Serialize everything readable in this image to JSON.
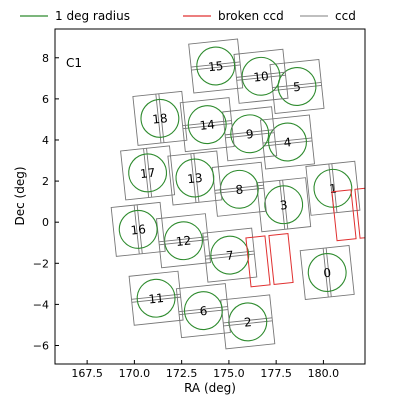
{
  "chart_data": {
    "type": "scatter",
    "title": "",
    "annotation": "C1",
    "xlabel": "RA (deg)",
    "ylabel": "Dec (deg)",
    "xlim": [
      165.8,
      182.2
    ],
    "ylim": [
      -6.9,
      9.4
    ],
    "x_ticks": [
      167.5,
      170.0,
      172.5,
      175.0,
      177.5,
      180.0
    ],
    "x_tick_labels": [
      "167.5",
      "170.0",
      "172.5",
      "175.0",
      "177.5",
      "180.0"
    ],
    "y_ticks": [
      -6,
      -4,
      -2,
      0,
      2,
      4,
      6,
      8
    ],
    "y_tick_labels": [
      "−6",
      "−4",
      "−2",
      "0",
      "2",
      "4",
      "6",
      "8"
    ],
    "grid": false,
    "legend": {
      "placement": "top, outside plot",
      "entries": [
        {
          "label": "1 deg radius",
          "color": "#2e8b2e"
        },
        {
          "label": "broken ccd",
          "color": "#e03030"
        },
        {
          "label": "ccd",
          "color": "#999999"
        }
      ]
    },
    "colors": {
      "circle": "#2e8b2e",
      "broken": "#e03030",
      "ccd": "#777777"
    },
    "pointings": [
      {
        "id": "0",
        "ra": 180.2,
        "dec": -2.45,
        "broken": false
      },
      {
        "id": "1",
        "ra": 180.5,
        "dec": 1.65,
        "broken": false
      },
      {
        "id": "2",
        "ra": 176.0,
        "dec": -4.85,
        "broken": false
      },
      {
        "id": "3",
        "ra": 177.9,
        "dec": 0.85,
        "broken": false
      },
      {
        "id": "4",
        "ra": 178.1,
        "dec": 3.9,
        "broken": false
      },
      {
        "id": "5",
        "ra": 178.6,
        "dec": 6.6,
        "broken": false
      },
      {
        "id": "6",
        "ra": 173.65,
        "dec": -4.3,
        "broken": false
      },
      {
        "id": "7",
        "ra": 175.05,
        "dec": -1.6,
        "broken": false
      },
      {
        "id": "8",
        "ra": 175.55,
        "dec": 1.6,
        "broken": false
      },
      {
        "id": "9",
        "ra": 176.1,
        "dec": 4.3,
        "broken": false
      },
      {
        "id": "10",
        "ra": 176.7,
        "dec": 7.1,
        "broken": false
      },
      {
        "id": "11",
        "ra": 171.15,
        "dec": -3.7,
        "broken": false
      },
      {
        "id": "12",
        "ra": 172.6,
        "dec": -0.9,
        "broken": false
      },
      {
        "id": "13",
        "ra": 173.2,
        "dec": 2.15,
        "broken": false
      },
      {
        "id": "14",
        "ra": 173.85,
        "dec": 4.75,
        "broken": false
      },
      {
        "id": "15",
        "ra": 174.3,
        "dec": 7.6,
        "broken": false
      },
      {
        "id": "16",
        "ra": 170.2,
        "dec": -0.35,
        "broken": false
      },
      {
        "id": "17",
        "ra": 170.7,
        "dec": 2.4,
        "broken": false
      },
      {
        "id": "18",
        "ra": 171.35,
        "dec": 5.05,
        "broken": false
      },
      {
        "id": "",
        "ra": 181.7,
        "dec": 0.4,
        "broken": true
      },
      {
        "id": "",
        "ra": 177.15,
        "dec": -1.85,
        "broken": true
      }
    ]
  }
}
